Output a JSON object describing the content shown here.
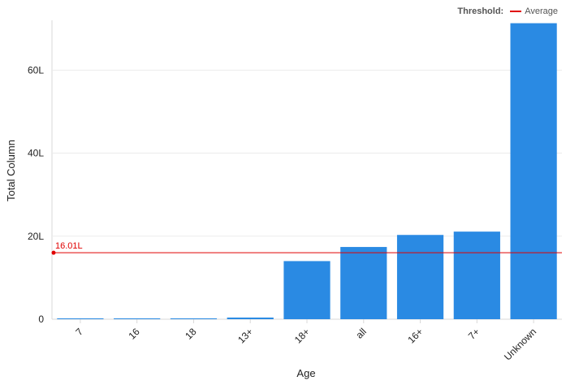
{
  "legend": {
    "title": "Threshold:",
    "item": "Average",
    "color": "#e00000"
  },
  "chart_data": {
    "type": "bar",
    "categories": [
      "7",
      "16",
      "18",
      "13+",
      "18+",
      "all",
      "16+",
      "7+",
      "Unknown"
    ],
    "values": [
      0.2,
      0.2,
      0.2,
      0.4,
      14.0,
      17.4,
      20.3,
      21.1,
      71.3
    ],
    "value_unit_suffix": "L",
    "xlabel": "Age",
    "ylabel": "Total Column",
    "ylim": [
      0,
      72
    ],
    "yticks": [
      0,
      20,
      40,
      60
    ],
    "ytick_labels": [
      "0",
      "20L",
      "40L",
      "60L"
    ],
    "grid": true,
    "bar_color": "#2a8ae3",
    "threshold": {
      "label": "16.01L",
      "value": 16.01,
      "color": "#e00000"
    }
  }
}
